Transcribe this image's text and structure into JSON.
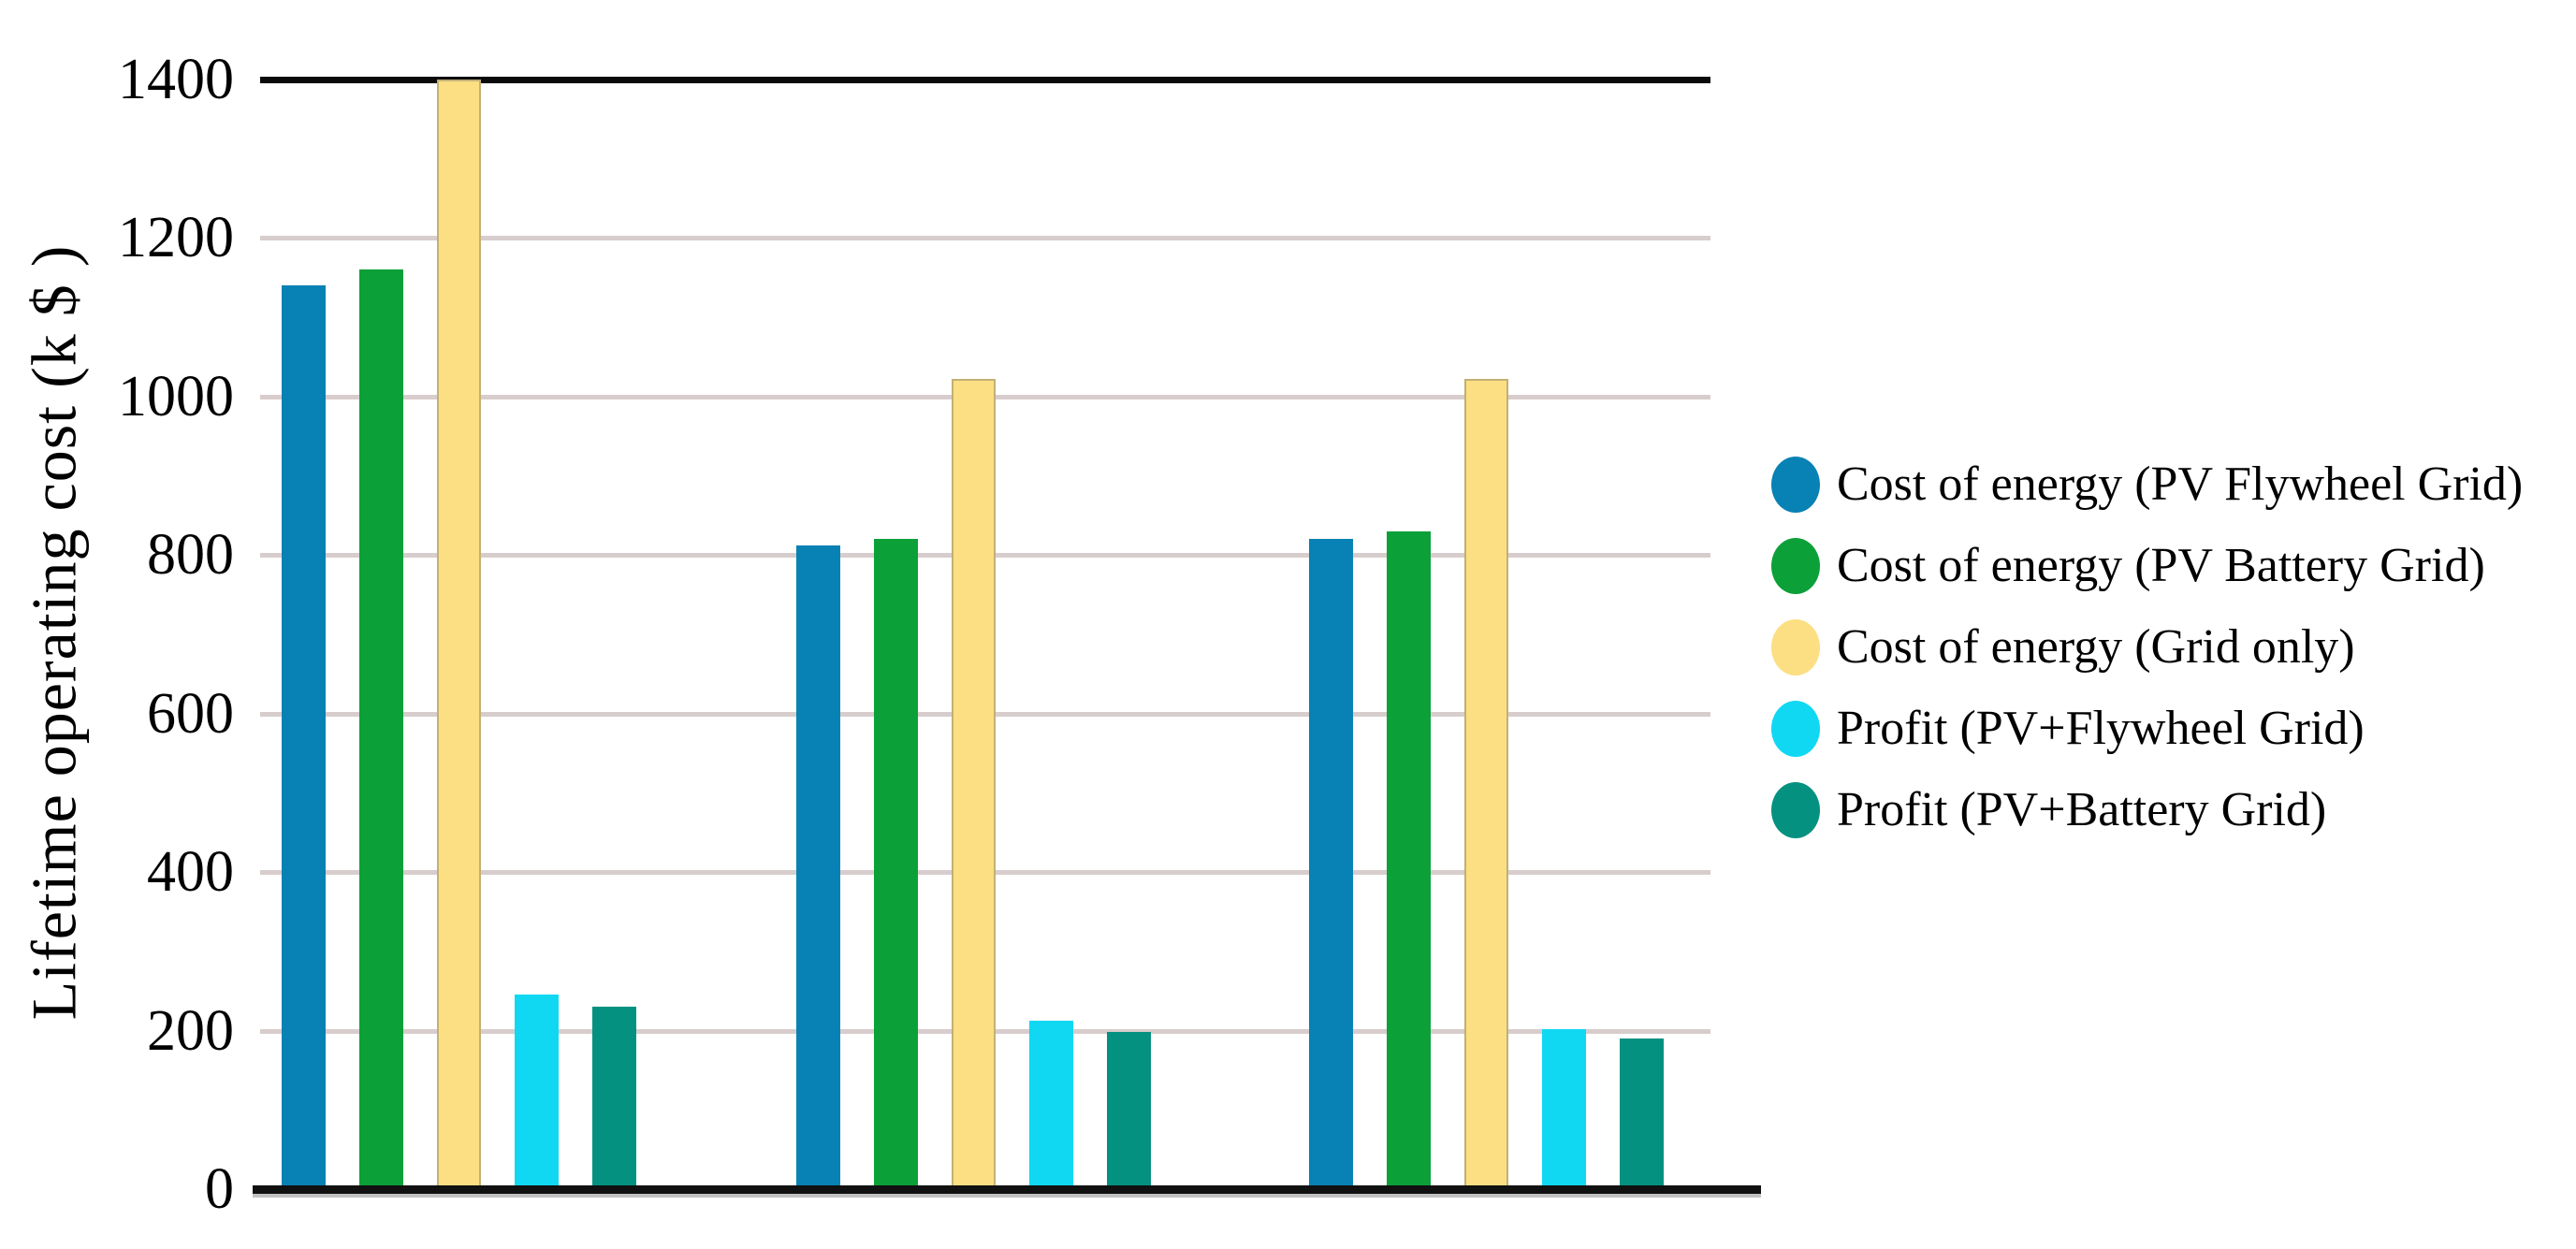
{
  "chart_data": {
    "type": "bar",
    "title": "",
    "xlabel": "",
    "ylabel": "Lifetime operating cost (k $ )",
    "ylim": [
      0,
      1400
    ],
    "yticks": [
      0,
      200,
      400,
      600,
      800,
      1000,
      1200,
      1400
    ],
    "grid": "horizontal",
    "legend_position": "right",
    "categories": [
      "",
      "",
      ""
    ],
    "series": [
      {
        "name": "Cost of energy (PV Flywheel Grid)",
        "color": "#0881b4",
        "values": [
          1140,
          812,
          820
        ]
      },
      {
        "name": "Cost of energy (PV Battery Grid)",
        "color": "#0ca039",
        "values": [
          1160,
          820,
          830
        ]
      },
      {
        "name": "Cost of energy (Grid only)",
        "color": "#fbdf82",
        "edge_color": "#c2b075",
        "values": [
          1400,
          1022,
          1022
        ]
      },
      {
        "name": "Profit (PV+Flywheel Grid)",
        "color": "#10d8f3",
        "values": [
          245,
          212,
          202
        ]
      },
      {
        "name": "Profit (PV+Battery Grid)",
        "color": "#059180",
        "values": [
          230,
          198,
          190
        ]
      }
    ]
  },
  "colors": {
    "background": "#ffffff",
    "gridline": "#d8cdcd",
    "axis": "#0a0a0a",
    "text": "#000000"
  }
}
